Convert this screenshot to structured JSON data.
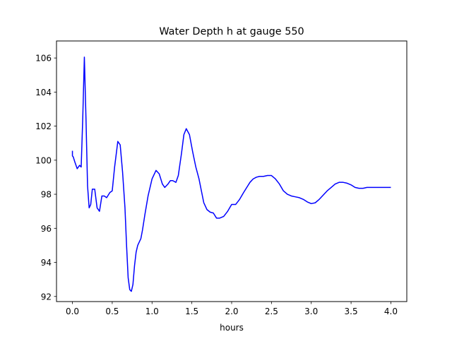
{
  "chart_data": {
    "type": "line",
    "title": "Water Depth h at gauge 550",
    "xlabel": "hours",
    "ylabel": "",
    "xlim": [
      -0.2,
      4.2
    ],
    "ylim": [
      91.7,
      107.0
    ],
    "xticks": [
      0.0,
      0.5,
      1.0,
      1.5,
      2.0,
      2.5,
      3.0,
      3.5,
      4.0
    ],
    "xtick_labels": [
      "0.0",
      "0.5",
      "1.0",
      "1.5",
      "2.0",
      "2.5",
      "3.0",
      "3.5",
      "4.0"
    ],
    "yticks": [
      92,
      94,
      96,
      98,
      100,
      102,
      104,
      106
    ],
    "ytick_labels": [
      "92",
      "94",
      "96",
      "98",
      "100",
      "102",
      "104",
      "106"
    ],
    "grid": false,
    "legend": "none",
    "series": [
      {
        "color": "#0000ff",
        "x": [
          0.0,
          0.0,
          0.01,
          0.03,
          0.06,
          0.09,
          0.11,
          0.13,
          0.15,
          0.17,
          0.19,
          0.21,
          0.23,
          0.25,
          0.28,
          0.31,
          0.34,
          0.37,
          0.4,
          0.43,
          0.47,
          0.5,
          0.53,
          0.57,
          0.6,
          0.63,
          0.66,
          0.68,
          0.7,
          0.72,
          0.74,
          0.76,
          0.78,
          0.8,
          0.82,
          0.84,
          0.86,
          0.88,
          0.91,
          0.95,
          1.0,
          1.05,
          1.09,
          1.13,
          1.16,
          1.2,
          1.23,
          1.26,
          1.3,
          1.33,
          1.37,
          1.4,
          1.43,
          1.47,
          1.51,
          1.55,
          1.59,
          1.62,
          1.65,
          1.69,
          1.73,
          1.77,
          1.81,
          1.85,
          1.9,
          1.95,
          2.0,
          2.05,
          2.1,
          2.15,
          2.19,
          2.23,
          2.27,
          2.31,
          2.35,
          2.4,
          2.45,
          2.5,
          2.55,
          2.6,
          2.65,
          2.7,
          2.75,
          2.8,
          2.85,
          2.9,
          2.95,
          3.0,
          3.05,
          3.1,
          3.15,
          3.2,
          3.25,
          3.3,
          3.35,
          3.4,
          3.45,
          3.5,
          3.55,
          3.6,
          3.65,
          3.7,
          3.75,
          3.8,
          3.85,
          3.9,
          3.95,
          4.0
        ],
        "y": [
          100.55,
          100.25,
          100.2,
          99.9,
          99.5,
          99.7,
          99.6,
          102.5,
          106.05,
          102.5,
          98.5,
          97.2,
          97.4,
          98.3,
          98.3,
          97.2,
          97.0,
          97.9,
          97.9,
          97.8,
          98.1,
          98.2,
          99.6,
          101.1,
          100.9,
          99.3,
          97.2,
          95.0,
          93.1,
          92.4,
          92.3,
          92.7,
          93.8,
          94.6,
          95.0,
          95.2,
          95.4,
          95.9,
          96.8,
          97.9,
          98.9,
          99.4,
          99.2,
          98.6,
          98.4,
          98.6,
          98.8,
          98.8,
          98.7,
          99.1,
          100.4,
          101.5,
          101.85,
          101.5,
          100.5,
          99.6,
          98.9,
          98.2,
          97.5,
          97.1,
          96.95,
          96.9,
          96.6,
          96.6,
          96.7,
          97.0,
          97.4,
          97.4,
          97.7,
          98.1,
          98.4,
          98.7,
          98.9,
          99.0,
          99.05,
          99.05,
          99.1,
          99.1,
          98.9,
          98.6,
          98.2,
          98.0,
          97.9,
          97.85,
          97.8,
          97.7,
          97.55,
          97.45,
          97.5,
          97.7,
          97.95,
          98.2,
          98.4,
          98.6,
          98.7,
          98.7,
          98.65,
          98.55,
          98.4,
          98.35,
          98.35,
          98.4,
          98.4,
          98.4,
          98.4,
          98.4,
          98.4,
          98.4
        ]
      }
    ]
  }
}
